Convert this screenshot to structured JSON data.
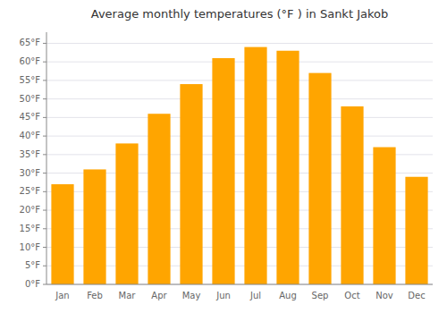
{
  "chart_data": {
    "type": "bar",
    "title": "Average monthly temperatures (°F ) in Sankt Jakob",
    "categories": [
      "Jan",
      "Feb",
      "Mar",
      "Apr",
      "May",
      "Jun",
      "Jul",
      "Aug",
      "Sep",
      "Oct",
      "Nov",
      "Dec"
    ],
    "values": [
      27,
      31,
      38,
      46,
      54,
      61,
      64,
      63,
      57,
      48,
      37,
      29
    ],
    "color": "#FFA500",
    "ylim": [
      0,
      68
    ],
    "yticks": [
      {
        "value": 0,
        "label": "0°F"
      },
      {
        "value": 5,
        "label": "5°F"
      },
      {
        "value": 10,
        "label": "10°F"
      },
      {
        "value": 15,
        "label": "15°F"
      },
      {
        "value": 20,
        "label": "20°F"
      },
      {
        "value": 25,
        "label": "25°F"
      },
      {
        "value": 30,
        "label": "30°F"
      },
      {
        "value": 35,
        "label": "35°F"
      },
      {
        "value": 40,
        "label": "40°F"
      },
      {
        "value": 45,
        "label": "45°F"
      },
      {
        "value": 50,
        "label": "50°F"
      },
      {
        "value": 55,
        "label": "55°F"
      },
      {
        "value": 60,
        "label": "60°F"
      },
      {
        "value": 65,
        "label": "65°F"
      }
    ],
    "grid": true
  }
}
